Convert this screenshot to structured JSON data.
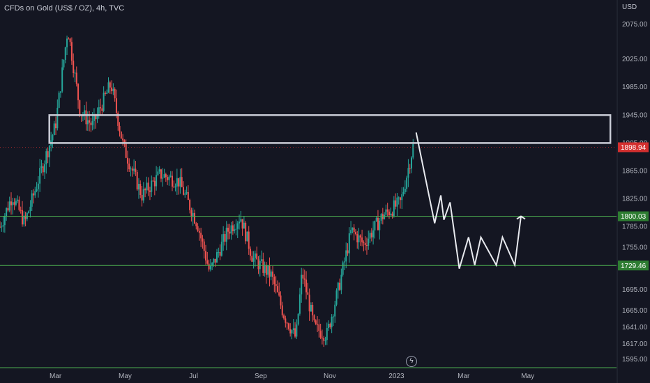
{
  "header": {
    "title": "CFDs on Gold (US$ / OZ), 4h, TVC",
    "currency": "USD"
  },
  "colors": {
    "background": "#141622",
    "up": "#26a69a",
    "down": "#ef5350",
    "level_line": "#4caf50",
    "last_price_badge": "#d32f2f",
    "level_badge": "#2e7d32",
    "drawing": "#e8eaef",
    "box": "#c9ccd6"
  },
  "chart_data": {
    "type": "candlestick",
    "x_tick_labels": [
      "Mar",
      "May",
      "Jul",
      "Sep",
      "Nov",
      "2023",
      "Mar",
      "May"
    ],
    "y_tick_labels": [
      "2075.00",
      "2025.00",
      "1985.00",
      "1945.00",
      "1905.00",
      "1865.00",
      "1825.00",
      "1785.00",
      "1755.00",
      "1695.00",
      "1665.00",
      "1641.00",
      "1617.00",
      "1595.00"
    ],
    "y_range": [
      1583,
      2110
    ],
    "last_price": "1898.94",
    "levels": [
      "1800.03",
      "1729.46"
    ],
    "price_path": [
      {
        "t": 0,
        "p": 1785
      },
      {
        "t": 0.02,
        "p": 1830
      },
      {
        "t": 0.04,
        "p": 1790
      },
      {
        "t": 0.065,
        "p": 1860
      },
      {
        "t": 0.09,
        "p": 1930
      },
      {
        "t": 0.11,
        "p": 2070
      },
      {
        "t": 0.13,
        "p": 1950
      },
      {
        "t": 0.15,
        "p": 1930
      },
      {
        "t": 0.18,
        "p": 1990
      },
      {
        "t": 0.2,
        "p": 1900
      },
      {
        "t": 0.23,
        "p": 1830
      },
      {
        "t": 0.26,
        "p": 1860
      },
      {
        "t": 0.29,
        "p": 1850
      },
      {
        "t": 0.32,
        "p": 1790
      },
      {
        "t": 0.34,
        "p": 1720
      },
      {
        "t": 0.37,
        "p": 1780
      },
      {
        "t": 0.39,
        "p": 1800
      },
      {
        "t": 0.41,
        "p": 1740
      },
      {
        "t": 0.44,
        "p": 1715
      },
      {
        "t": 0.46,
        "p": 1660
      },
      {
        "t": 0.48,
        "p": 1625
      },
      {
        "t": 0.49,
        "p": 1720
      },
      {
        "t": 0.51,
        "p": 1640
      },
      {
        "t": 0.53,
        "p": 1630
      },
      {
        "t": 0.55,
        "p": 1700
      },
      {
        "t": 0.57,
        "p": 1780
      },
      {
        "t": 0.59,
        "p": 1760
      },
      {
        "t": 0.62,
        "p": 1800
      },
      {
        "t": 0.65,
        "p": 1820
      },
      {
        "t": 0.67,
        "p": 1900
      }
    ],
    "projection": [
      {
        "t": 0.675,
        "p": 1920
      },
      {
        "t": 0.705,
        "p": 1790
      },
      {
        "t": 0.715,
        "p": 1830
      },
      {
        "t": 0.72,
        "p": 1795
      },
      {
        "t": 0.73,
        "p": 1820
      },
      {
        "t": 0.745,
        "p": 1725
      },
      {
        "t": 0.76,
        "p": 1770
      },
      {
        "t": 0.77,
        "p": 1730
      },
      {
        "t": 0.78,
        "p": 1770
      },
      {
        "t": 0.805,
        "p": 1730
      },
      {
        "t": 0.815,
        "p": 1770
      },
      {
        "t": 0.835,
        "p": 1730
      },
      {
        "t": 0.845,
        "p": 1800
      }
    ],
    "zone": {
      "price_top": 1945,
      "price_bottom": 1905,
      "t_start": 0.08,
      "t_end": 0.99
    }
  }
}
